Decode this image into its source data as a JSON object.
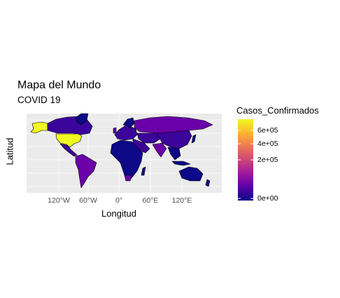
{
  "title": "Mapa del Mundo",
  "subtitle": "COVID 19",
  "xlabel": "Longitud",
  "ylabel": "Latitud",
  "x_ticks": [
    "120°W",
    "60°W",
    "0°",
    "60°E",
    "120°E"
  ],
  "legend": {
    "title": "Casos_Confirmados",
    "ticks": [
      "6e+05",
      "4e+05",
      "2e+05",
      "0e+00"
    ],
    "colors": [
      "#0d0887",
      "#5c01a6",
      "#9c179e",
      "#cc4778",
      "#ed7953",
      "#fdb42f",
      "#f0f921"
    ]
  },
  "colors": {
    "panel": "#ebebeb",
    "grid": "#ffffff",
    "border": "#000000",
    "low": "#0d0887",
    "midlow": "#3b049a",
    "mid": "#6a00a8",
    "high": "#f0f921"
  }
}
